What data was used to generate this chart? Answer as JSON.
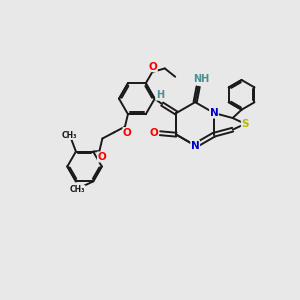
{
  "background_color": "#e8e8e8",
  "bond_color": "#1a1a1a",
  "bond_width": 1.4,
  "atom_colors": {
    "O": "#ff0000",
    "N": "#0000cc",
    "S": "#b8b800",
    "H_teal": "#4a9090"
  },
  "font_size_atom": 7.5,
  "font_size_small": 5.5,
  "xlim": [
    0,
    10
  ],
  "ylim": [
    0,
    10
  ]
}
